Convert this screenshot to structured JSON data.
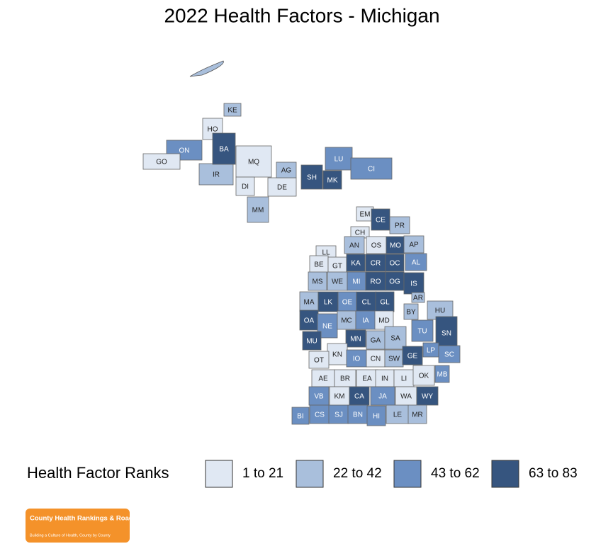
{
  "title": "2022 Health Factors - Michigan",
  "legend": {
    "title": "Health Factor Ranks",
    "bins": [
      {
        "label": "1 to 21",
        "color": "#e0e8f3"
      },
      {
        "label": "22 to 42",
        "color": "#a9bfdc"
      },
      {
        "label": "43 to 62",
        "color": "#6b8fc2"
      },
      {
        "label": "63 to 83",
        "color": "#36557f"
      }
    ]
  },
  "counties": [
    {
      "label": "KE",
      "class": 1
    },
    {
      "label": "HO",
      "class": 0
    },
    {
      "label": "ON",
      "class": 2
    },
    {
      "label": "GO",
      "class": 0
    },
    {
      "label": "IR",
      "class": 1
    },
    {
      "label": "MQ",
      "class": 0
    },
    {
      "label": "BA",
      "class": 3
    },
    {
      "label": "DI",
      "class": 0
    },
    {
      "label": "MM",
      "class": 1
    },
    {
      "label": "DE",
      "class": 0
    },
    {
      "label": "AG",
      "class": 1
    },
    {
      "label": "SH",
      "class": 3
    },
    {
      "label": "MK",
      "class": 3
    },
    {
      "label": "LU",
      "class": 2
    },
    {
      "label": "CI",
      "class": 2
    },
    {
      "label": "EM",
      "class": 0
    },
    {
      "label": "CE",
      "class": 3
    },
    {
      "label": "PR",
      "class": 1
    },
    {
      "label": "CH",
      "class": 0
    },
    {
      "label": "LL",
      "class": 0
    },
    {
      "label": "AN",
      "class": 1
    },
    {
      "label": "OS",
      "class": 0
    },
    {
      "label": "MO",
      "class": 3
    },
    {
      "label": "AP",
      "class": 1
    },
    {
      "label": "BE",
      "class": 0
    },
    {
      "label": "GT",
      "class": 0
    },
    {
      "label": "KA",
      "class": 3
    },
    {
      "label": "CR",
      "class": 3
    },
    {
      "label": "OC",
      "class": 3
    },
    {
      "label": "AL",
      "class": 2
    },
    {
      "label": "MS",
      "class": 1
    },
    {
      "label": "WE",
      "class": 1
    },
    {
      "label": "MI",
      "class": 2
    },
    {
      "label": "RO",
      "class": 3
    },
    {
      "label": "OG",
      "class": 3
    },
    {
      "label": "IS",
      "class": 3
    },
    {
      "label": "AR",
      "class": 1
    },
    {
      "label": "MA",
      "class": 1
    },
    {
      "label": "LK",
      "class": 3
    },
    {
      "label": "OE",
      "class": 2
    },
    {
      "label": "CL",
      "class": 3
    },
    {
      "label": "GL",
      "class": 3
    },
    {
      "label": "BY",
      "class": 1
    },
    {
      "label": "HU",
      "class": 1
    },
    {
      "label": "OA",
      "class": 3
    },
    {
      "label": "NE",
      "class": 2
    },
    {
      "label": "MC",
      "class": 1
    },
    {
      "label": "IA",
      "class": 2
    },
    {
      "label": "MD",
      "class": 0
    },
    {
      "label": "MU",
      "class": 3
    },
    {
      "label": "MN",
      "class": 3
    },
    {
      "label": "GA",
      "class": 1
    },
    {
      "label": "SA",
      "class": 1
    },
    {
      "label": "TU",
      "class": 2
    },
    {
      "label": "SN",
      "class": 3
    },
    {
      "label": "LP",
      "class": 2
    },
    {
      "label": "KN",
      "class": 0
    },
    {
      "label": "IO",
      "class": 2
    },
    {
      "label": "CN",
      "class": 0
    },
    {
      "label": "SW",
      "class": 1
    },
    {
      "label": "GE",
      "class": 3
    },
    {
      "label": "SC",
      "class": 2
    },
    {
      "label": "OT",
      "class": 0
    },
    {
      "label": "MB",
      "class": 2
    },
    {
      "label": "AE",
      "class": 0
    },
    {
      "label": "BR",
      "class": 0
    },
    {
      "label": "EA",
      "class": 0
    },
    {
      "label": "IN",
      "class": 0
    },
    {
      "label": "LI",
      "class": 0
    },
    {
      "label": "OK",
      "class": 0
    },
    {
      "label": "VB",
      "class": 2
    },
    {
      "label": "KM",
      "class": 0
    },
    {
      "label": "CA",
      "class": 3
    },
    {
      "label": "JA",
      "class": 2
    },
    {
      "label": "WA",
      "class": 0
    },
    {
      "label": "WY",
      "class": 3
    },
    {
      "label": "BI",
      "class": 2
    },
    {
      "label": "CS",
      "class": 2
    },
    {
      "label": "SJ",
      "class": 2
    },
    {
      "label": "BN",
      "class": 2
    },
    {
      "label": "HI",
      "class": 2
    },
    {
      "label": "LE",
      "class": 1
    },
    {
      "label": "MR",
      "class": 1
    }
  ],
  "logo": {
    "name": "County Health Rankings & Roadmaps",
    "tagline": "Building a Culture of Health, County by County"
  }
}
